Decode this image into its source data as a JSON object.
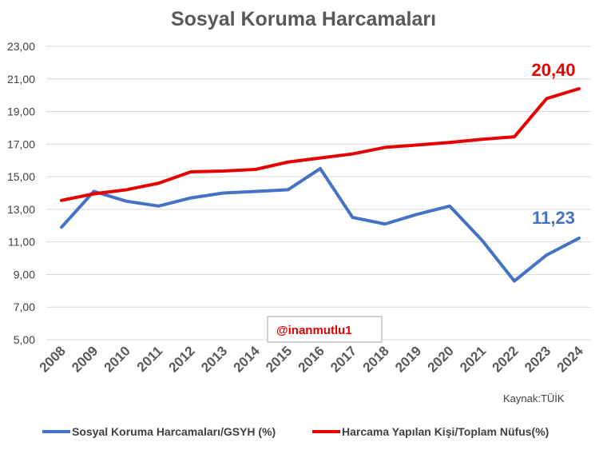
{
  "chart_data": {
    "type": "line",
    "title": "Sosyal Koruma Harcamaları",
    "x": [
      "2008",
      "2009",
      "2010",
      "2011",
      "2012",
      "2013",
      "2014",
      "2015",
      "2016",
      "2017",
      "2018",
      "2019",
      "2020",
      "2021",
      "2022",
      "2023",
      "2024"
    ],
    "ylim": [
      5,
      23
    ],
    "yticks": [
      "5,00",
      "7,00",
      "9,00",
      "11,00",
      "13,00",
      "15,00",
      "17,00",
      "19,00",
      "21,00",
      "23,00"
    ],
    "ytick_values": [
      5,
      7,
      9,
      11,
      13,
      15,
      17,
      19,
      21,
      23
    ],
    "grid": true,
    "legend_position": "bottom",
    "series": [
      {
        "name": "Sosyal Koruma Harcamaları/GSYH (%)",
        "color": "#4472c4",
        "values": [
          11.9,
          14.1,
          13.5,
          13.2,
          13.7,
          14.0,
          14.1,
          14.2,
          15.5,
          12.5,
          12.1,
          12.7,
          13.2,
          11.1,
          8.6,
          10.2,
          11.23
        ],
        "end_label": "11,23"
      },
      {
        "name": "Harcama Yapılan Kişi/Toplam Nüfus(%)",
        "color": "#e60000",
        "values": [
          13.55,
          13.95,
          14.2,
          14.6,
          15.3,
          15.35,
          15.45,
          15.9,
          16.15,
          16.4,
          16.8,
          16.95,
          17.1,
          17.3,
          17.45,
          19.8,
          20.4
        ],
        "end_label": "20,40"
      }
    ]
  },
  "watermark": "@inanmutlu1",
  "source_text": "Kaynak:TÜİK"
}
